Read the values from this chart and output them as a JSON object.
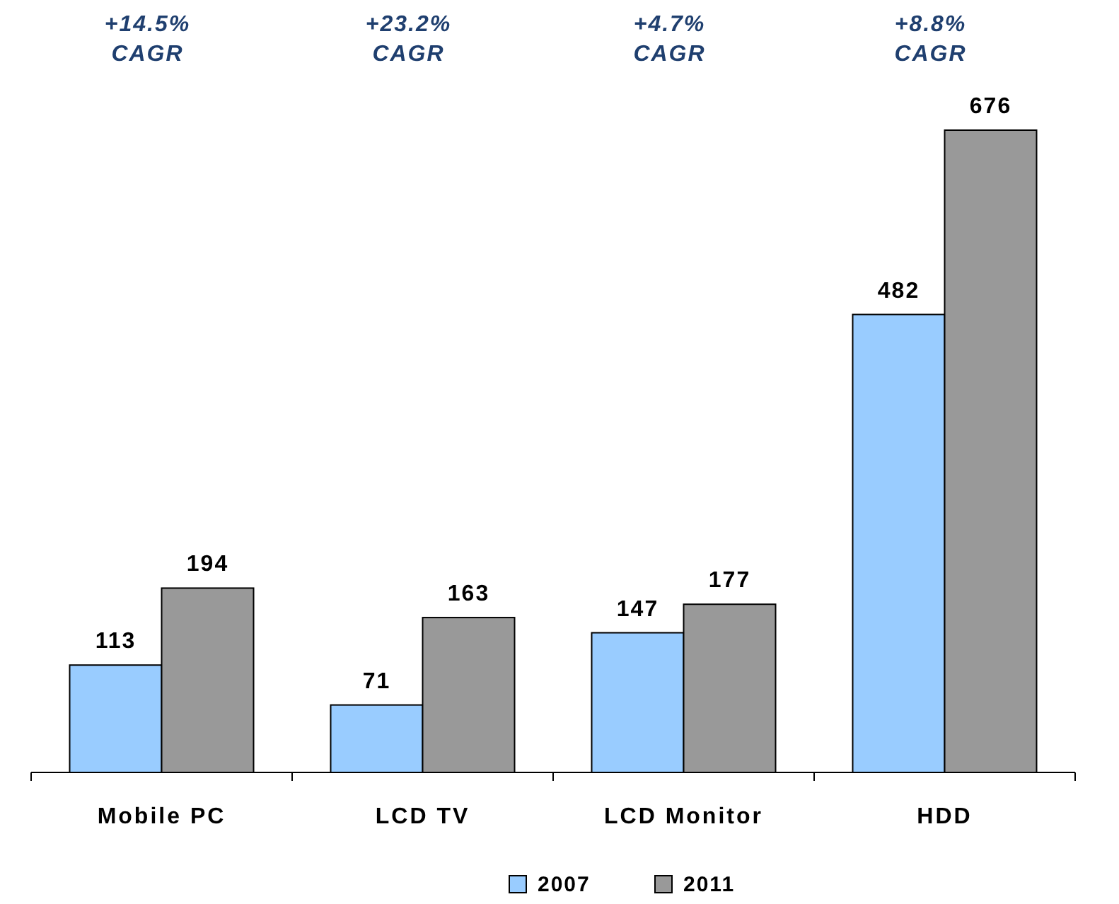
{
  "chart_data": {
    "type": "bar",
    "categories": [
      "Mobile PC",
      "LCD TV",
      "LCD Monitor",
      "HDD"
    ],
    "series": [
      {
        "name": "2007",
        "color": "#99ccff",
        "values": [
          113,
          71,
          147,
          482
        ]
      },
      {
        "name": "2011",
        "color": "#999999",
        "values": [
          194,
          163,
          177,
          676
        ]
      }
    ],
    "data_labels": true,
    "legend": "bottom",
    "grid": false,
    "annotations": [
      "+14.5% CAGR",
      "+23.2% CAGR",
      "+4.7% CAGR",
      "+8.8% CAGR"
    ]
  }
}
